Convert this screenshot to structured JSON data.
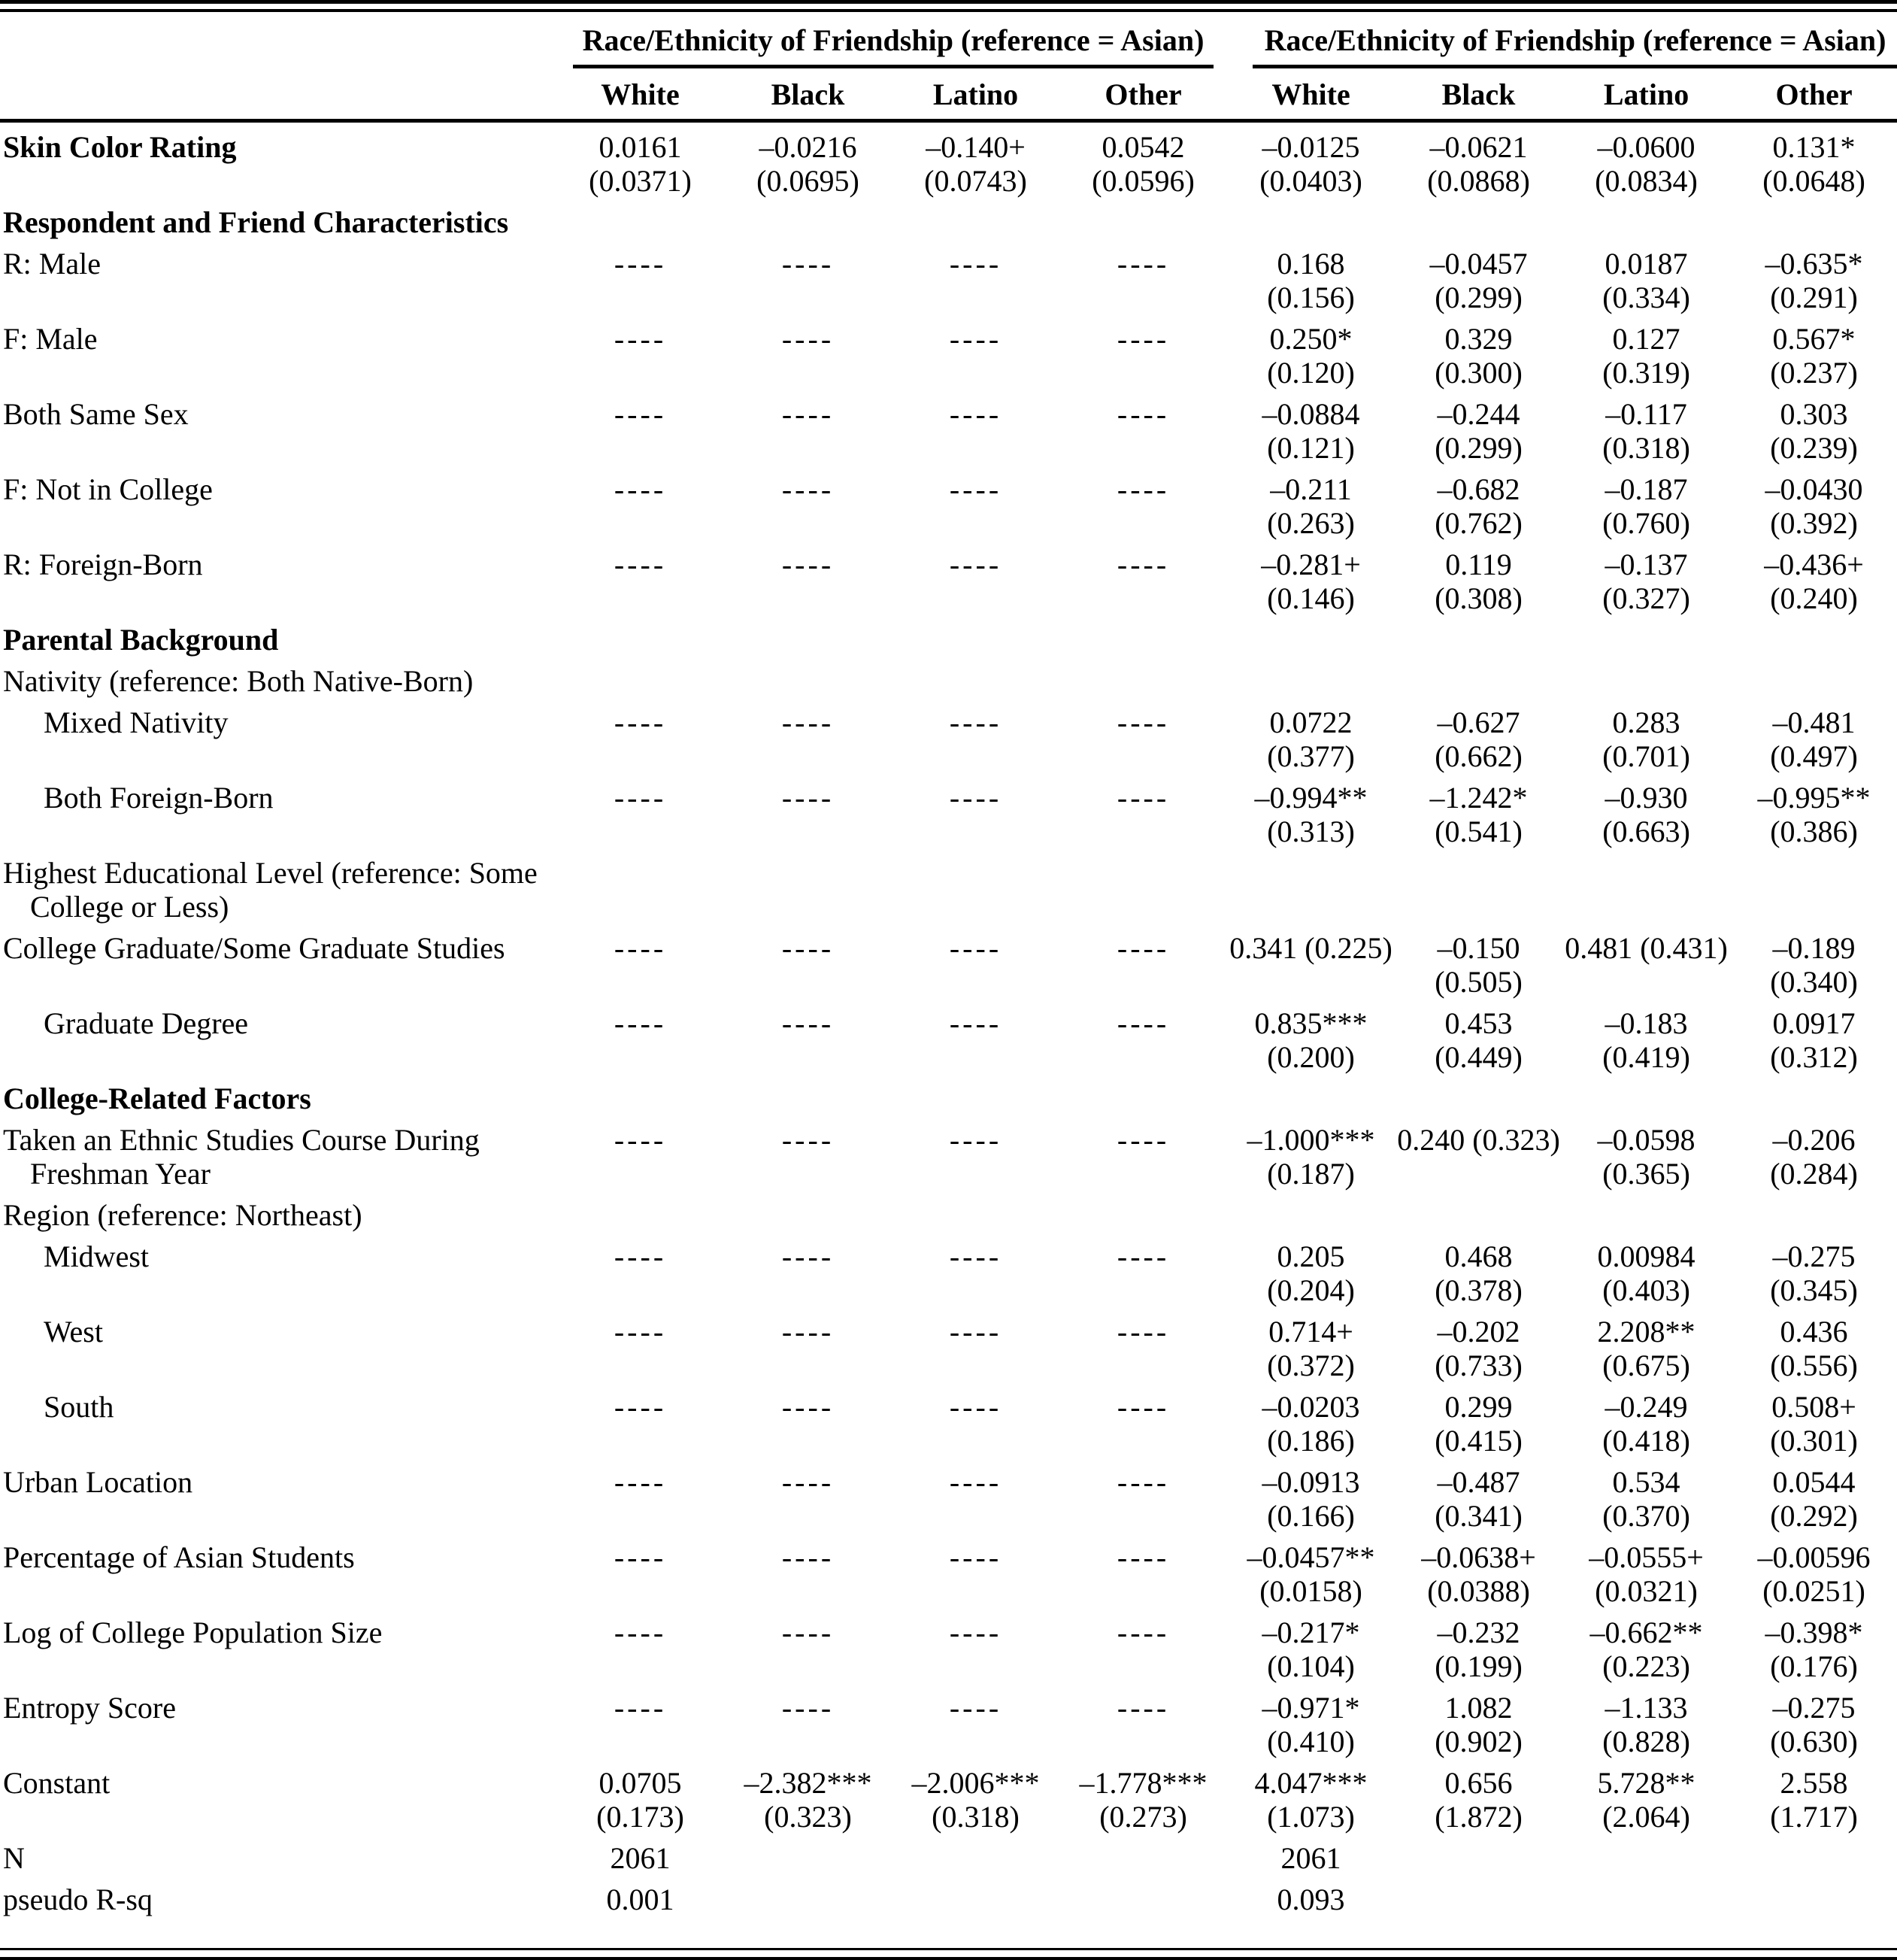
{
  "table": {
    "panel1": {
      "spanner": "Race/Ethnicity of Friendship (reference = Asian)",
      "columns": [
        "White",
        "Black",
        "Latino",
        "Other"
      ]
    },
    "panel2": {
      "spanner": "Race/Ethnicity of Friendship (reference = Asian)",
      "columns": [
        "White",
        "Black",
        "Latino",
        "Other"
      ]
    },
    "stats": {
      "n_model1": "2061",
      "n_model2": "2061",
      "pseudo_rsq_model1": "0.001",
      "pseudo_rsq_model2": "0.093"
    },
    "rows": [
      {
        "type": "data",
        "bold": true,
        "label": "Skin Color Rating",
        "cells": [
          [
            "0.0161",
            "(0.0371)"
          ],
          [
            "–0.0216",
            "(0.0695)"
          ],
          [
            "–0.140+",
            "(0.0743)"
          ],
          [
            "0.0542",
            "(0.0596)"
          ],
          [
            "–0.0125",
            "(0.0403)"
          ],
          [
            "–0.0621",
            "(0.0868)"
          ],
          [
            "–0.0600",
            "(0.0834)"
          ],
          [
            "0.131*",
            "(0.0648)"
          ]
        ]
      },
      {
        "type": "section",
        "label": "Respondent and Friend Characteristics"
      },
      {
        "type": "data",
        "label": "R: Male",
        "cells": [
          [
            "----",
            ""
          ],
          [
            "----",
            ""
          ],
          [
            "----",
            ""
          ],
          [
            "----",
            ""
          ],
          [
            "0.168",
            "(0.156)"
          ],
          [
            "–0.0457",
            "(0.299)"
          ],
          [
            "0.0187",
            "(0.334)"
          ],
          [
            "–0.635*",
            "(0.291)"
          ]
        ]
      },
      {
        "type": "data",
        "label": "F: Male",
        "cells": [
          [
            "----",
            ""
          ],
          [
            "----",
            ""
          ],
          [
            "----",
            ""
          ],
          [
            "----",
            ""
          ],
          [
            "0.250*",
            "(0.120)"
          ],
          [
            "0.329",
            "(0.300)"
          ],
          [
            "0.127",
            "(0.319)"
          ],
          [
            "0.567*",
            "(0.237)"
          ]
        ]
      },
      {
        "type": "data",
        "label": "Both Same Sex",
        "cells": [
          [
            "----",
            ""
          ],
          [
            "----",
            ""
          ],
          [
            "----",
            ""
          ],
          [
            "----",
            ""
          ],
          [
            "–0.0884",
            "(0.121)"
          ],
          [
            "–0.244",
            "(0.299)"
          ],
          [
            "–0.117",
            "(0.318)"
          ],
          [
            "0.303",
            "(0.239)"
          ]
        ]
      },
      {
        "type": "data",
        "label": "F: Not in College",
        "cells": [
          [
            "----",
            ""
          ],
          [
            "----",
            ""
          ],
          [
            "----",
            ""
          ],
          [
            "----",
            ""
          ],
          [
            "–0.211",
            "(0.263)"
          ],
          [
            "–0.682",
            "(0.762)"
          ],
          [
            "–0.187",
            "(0.760)"
          ],
          [
            "–0.0430",
            "(0.392)"
          ]
        ]
      },
      {
        "type": "data",
        "label": "R: Foreign-Born",
        "cells": [
          [
            "----",
            ""
          ],
          [
            "----",
            ""
          ],
          [
            "----",
            ""
          ],
          [
            "----",
            ""
          ],
          [
            "–0.281+",
            "(0.146)"
          ],
          [
            "0.119",
            "(0.308)"
          ],
          [
            "–0.137",
            "(0.327)"
          ],
          [
            "–0.436+",
            "(0.240)"
          ]
        ]
      },
      {
        "type": "section",
        "label": "Parental Background"
      },
      {
        "type": "label",
        "label": "Nativity (reference: Both Native-Born)"
      },
      {
        "type": "data",
        "indent": true,
        "label": "Mixed Nativity",
        "cells": [
          [
            "----",
            ""
          ],
          [
            "----",
            ""
          ],
          [
            "----",
            ""
          ],
          [
            "----",
            ""
          ],
          [
            "0.0722",
            "(0.377)"
          ],
          [
            "–0.627",
            "(0.662)"
          ],
          [
            "0.283",
            "(0.701)"
          ],
          [
            "–0.481",
            "(0.497)"
          ]
        ]
      },
      {
        "type": "data",
        "indent": true,
        "label": "Both Foreign-Born",
        "cells": [
          [
            "----",
            ""
          ],
          [
            "----",
            ""
          ],
          [
            "----",
            ""
          ],
          [
            "----",
            ""
          ],
          [
            "–0.994**",
            "(0.313)"
          ],
          [
            "–1.242*",
            "(0.541)"
          ],
          [
            "–0.930",
            "(0.663)"
          ],
          [
            "–0.995**",
            "(0.386)"
          ]
        ]
      },
      {
        "type": "label",
        "label": "Highest Educational Level (reference: Some College or Less)"
      },
      {
        "type": "data",
        "label": "College Graduate/Some Graduate Studies",
        "cells": [
          [
            "----",
            ""
          ],
          [
            "----",
            ""
          ],
          [
            "----",
            ""
          ],
          [
            "----",
            ""
          ],
          [
            "0.341 (0.225)",
            ""
          ],
          [
            "–0.150",
            "(0.505)"
          ],
          [
            "0.481 (0.431)",
            ""
          ],
          [
            "–0.189",
            "(0.340)"
          ]
        ]
      },
      {
        "type": "data",
        "indent": true,
        "label": "Graduate Degree",
        "cells": [
          [
            "----",
            ""
          ],
          [
            "----",
            ""
          ],
          [
            "----",
            ""
          ],
          [
            "----",
            ""
          ],
          [
            "0.835***",
            "(0.200)"
          ],
          [
            "0.453",
            "(0.449)"
          ],
          [
            "–0.183",
            "(0.419)"
          ],
          [
            "0.0917",
            "(0.312)"
          ]
        ]
      },
      {
        "type": "section",
        "label": "College-Related Factors"
      },
      {
        "type": "data",
        "label": "Taken an Ethnic Studies Course During Freshman Year",
        "cells": [
          [
            "----",
            ""
          ],
          [
            "----",
            ""
          ],
          [
            "----",
            ""
          ],
          [
            "----",
            ""
          ],
          [
            "–1.000***",
            "(0.187)"
          ],
          [
            "0.240 (0.323)",
            ""
          ],
          [
            "–0.0598",
            "(0.365)"
          ],
          [
            "–0.206",
            "(0.284)"
          ]
        ]
      },
      {
        "type": "label",
        "label": "Region (reference: Northeast)"
      },
      {
        "type": "data",
        "indent": true,
        "label": "Midwest",
        "cells": [
          [
            "----",
            ""
          ],
          [
            "----",
            ""
          ],
          [
            "----",
            ""
          ],
          [
            "----",
            ""
          ],
          [
            "0.205",
            "(0.204)"
          ],
          [
            "0.468",
            "(0.378)"
          ],
          [
            "0.00984",
            "(0.403)"
          ],
          [
            "–0.275",
            "(0.345)"
          ]
        ]
      },
      {
        "type": "data",
        "indent": true,
        "label": "West",
        "cells": [
          [
            "----",
            ""
          ],
          [
            "----",
            ""
          ],
          [
            "----",
            ""
          ],
          [
            "----",
            ""
          ],
          [
            "0.714+",
            "(0.372)"
          ],
          [
            "–0.202",
            "(0.733)"
          ],
          [
            "2.208**",
            "(0.675)"
          ],
          [
            "0.436",
            "(0.556)"
          ]
        ]
      },
      {
        "type": "data",
        "indent": true,
        "label": "South",
        "cells": [
          [
            "----",
            ""
          ],
          [
            "----",
            ""
          ],
          [
            "----",
            ""
          ],
          [
            "----",
            ""
          ],
          [
            "–0.0203",
            "(0.186)"
          ],
          [
            "0.299",
            "(0.415)"
          ],
          [
            "–0.249",
            "(0.418)"
          ],
          [
            "0.508+",
            "(0.301)"
          ]
        ]
      },
      {
        "type": "data",
        "label": "Urban Location",
        "cells": [
          [
            "----",
            ""
          ],
          [
            "----",
            ""
          ],
          [
            "----",
            ""
          ],
          [
            "----",
            ""
          ],
          [
            "–0.0913",
            "(0.166)"
          ],
          [
            "–0.487",
            "(0.341)"
          ],
          [
            "0.534",
            "(0.370)"
          ],
          [
            "0.0544",
            "(0.292)"
          ]
        ]
      },
      {
        "type": "data",
        "label": "Percentage of Asian Students",
        "cells": [
          [
            "----",
            ""
          ],
          [
            "----",
            ""
          ],
          [
            "----",
            ""
          ],
          [
            "----",
            ""
          ],
          [
            "–0.0457**",
            "(0.0158)"
          ],
          [
            "–0.0638+",
            "(0.0388)"
          ],
          [
            "–0.0555+",
            "(0.0321)"
          ],
          [
            "–0.00596",
            "(0.0251)"
          ]
        ]
      },
      {
        "type": "data",
        "label": "Log of College Population Size",
        "cells": [
          [
            "----",
            ""
          ],
          [
            "----",
            ""
          ],
          [
            "----",
            ""
          ],
          [
            "----",
            ""
          ],
          [
            "–0.217*",
            "(0.104)"
          ],
          [
            "–0.232",
            "(0.199)"
          ],
          [
            "–0.662**",
            "(0.223)"
          ],
          [
            "–0.398*",
            "(0.176)"
          ]
        ]
      },
      {
        "type": "data",
        "label": "Entropy Score",
        "cells": [
          [
            "----",
            ""
          ],
          [
            "----",
            ""
          ],
          [
            "----",
            ""
          ],
          [
            "----",
            ""
          ],
          [
            "–0.971*",
            "(0.410)"
          ],
          [
            "1.082",
            "(0.902)"
          ],
          [
            "–1.133",
            "(0.828)"
          ],
          [
            "–0.275",
            "(0.630)"
          ]
        ]
      },
      {
        "type": "data",
        "label": "Constant",
        "cells": [
          [
            "0.0705",
            "(0.173)"
          ],
          [
            "–2.382***",
            "(0.323)"
          ],
          [
            "–2.006***",
            "(0.318)"
          ],
          [
            "–1.778***",
            "(0.273)"
          ],
          [
            "4.047***",
            "(1.073)"
          ],
          [
            "0.656",
            "(1.872)"
          ],
          [
            "5.728**",
            "(2.064)"
          ],
          [
            "2.558",
            "(1.717)"
          ]
        ]
      },
      {
        "type": "stat",
        "single": true,
        "label": "N",
        "cells": [
          [
            "2061"
          ],
          null,
          null,
          null,
          [
            "2061"
          ],
          null,
          null,
          null
        ]
      },
      {
        "type": "stat",
        "single": true,
        "label": "pseudo R-sq",
        "cells": [
          [
            "0.001"
          ],
          null,
          null,
          null,
          [
            "0.093"
          ],
          null,
          null,
          null
        ]
      }
    ]
  }
}
